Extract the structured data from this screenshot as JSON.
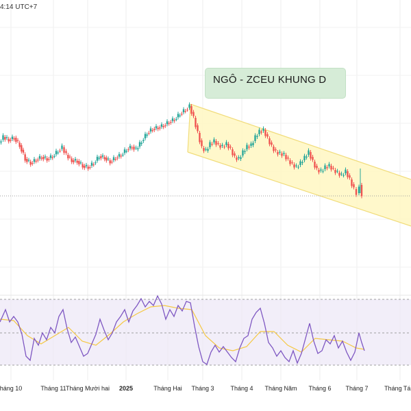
{
  "header": {
    "timestamp": "4:14 UTC+7"
  },
  "annotation": {
    "text": "NGÔ - ZCEU KHUNG D"
  },
  "colors": {
    "up": "#26a69a",
    "down": "#ef5350",
    "channel_fill": "#fff7c2",
    "channel_border": "#f1dc7a",
    "rsi_line": "#7e57c2",
    "rsi_ma": "#f5c842",
    "rsi_band": "#ede7f6",
    "price_line": "#9e9e9e"
  },
  "chart_data": [
    {
      "type": "candlestick",
      "title": "",
      "channel_type": "descending",
      "price_line": true,
      "grid": true,
      "x_ticks": [
        "háng 10",
        "Tháng 11",
        "Tháng Mười hai",
        "2025",
        "Tháng Hai",
        "Tháng 3",
        "Tháng 4",
        "Tháng Năm",
        "Tháng 6",
        "Tháng 7",
        "Tháng Tám"
      ],
      "close_series": [
        {
          "x": 0,
          "y": 208
        },
        {
          "x": 6,
          "y": 200
        },
        {
          "x": 14,
          "y": 204
        },
        {
          "x": 22,
          "y": 201
        },
        {
          "x": 30,
          "y": 212
        },
        {
          "x": 38,
          "y": 232
        },
        {
          "x": 46,
          "y": 238
        },
        {
          "x": 54,
          "y": 233
        },
        {
          "x": 62,
          "y": 229
        },
        {
          "x": 70,
          "y": 232
        },
        {
          "x": 78,
          "y": 228
        },
        {
          "x": 86,
          "y": 220
        },
        {
          "x": 92,
          "y": 215
        },
        {
          "x": 98,
          "y": 226
        },
        {
          "x": 106,
          "y": 234
        },
        {
          "x": 114,
          "y": 235
        },
        {
          "x": 122,
          "y": 242
        },
        {
          "x": 130,
          "y": 244
        },
        {
          "x": 138,
          "y": 238
        },
        {
          "x": 146,
          "y": 228
        },
        {
          "x": 154,
          "y": 230
        },
        {
          "x": 162,
          "y": 236
        },
        {
          "x": 170,
          "y": 230
        },
        {
          "x": 178,
          "y": 226
        },
        {
          "x": 186,
          "y": 218
        },
        {
          "x": 194,
          "y": 214
        },
        {
          "x": 200,
          "y": 218
        },
        {
          "x": 208,
          "y": 206
        },
        {
          "x": 216,
          "y": 194
        },
        {
          "x": 224,
          "y": 188
        },
        {
          "x": 232,
          "y": 186
        },
        {
          "x": 240,
          "y": 183
        },
        {
          "x": 248,
          "y": 178
        },
        {
          "x": 256,
          "y": 174
        },
        {
          "x": 264,
          "y": 166
        },
        {
          "x": 272,
          "y": 160
        },
        {
          "x": 278,
          "y": 155
        },
        {
          "x": 284,
          "y": 172
        },
        {
          "x": 290,
          "y": 194
        },
        {
          "x": 296,
          "y": 216
        },
        {
          "x": 302,
          "y": 220
        },
        {
          "x": 308,
          "y": 210
        },
        {
          "x": 314,
          "y": 206
        },
        {
          "x": 320,
          "y": 212
        },
        {
          "x": 326,
          "y": 214
        },
        {
          "x": 332,
          "y": 210
        },
        {
          "x": 338,
          "y": 218
        },
        {
          "x": 344,
          "y": 230
        },
        {
          "x": 350,
          "y": 232
        },
        {
          "x": 356,
          "y": 222
        },
        {
          "x": 362,
          "y": 214
        },
        {
          "x": 368,
          "y": 212
        },
        {
          "x": 374,
          "y": 200
        },
        {
          "x": 380,
          "y": 192
        },
        {
          "x": 386,
          "y": 190
        },
        {
          "x": 392,
          "y": 202
        },
        {
          "x": 398,
          "y": 214
        },
        {
          "x": 404,
          "y": 222
        },
        {
          "x": 410,
          "y": 224
        },
        {
          "x": 416,
          "y": 226
        },
        {
          "x": 422,
          "y": 234
        },
        {
          "x": 428,
          "y": 240
        },
        {
          "x": 434,
          "y": 244
        },
        {
          "x": 440,
          "y": 238
        },
        {
          "x": 446,
          "y": 230
        },
        {
          "x": 452,
          "y": 222
        },
        {
          "x": 458,
          "y": 236
        },
        {
          "x": 464,
          "y": 248
        },
        {
          "x": 470,
          "y": 250
        },
        {
          "x": 476,
          "y": 244
        },
        {
          "x": 482,
          "y": 242
        },
        {
          "x": 488,
          "y": 248
        },
        {
          "x": 494,
          "y": 252
        },
        {
          "x": 500,
          "y": 256
        },
        {
          "x": 506,
          "y": 250
        },
        {
          "x": 512,
          "y": 262
        },
        {
          "x": 518,
          "y": 276
        },
        {
          "x": 522,
          "y": 282
        },
        {
          "x": 526,
          "y": 270
        },
        {
          "x": 530,
          "y": 284
        }
      ],
      "rsi_series": [
        {
          "x": 0,
          "y": 470
        },
        {
          "x": 8,
          "y": 452
        },
        {
          "x": 14,
          "y": 470
        },
        {
          "x": 20,
          "y": 462
        },
        {
          "x": 26,
          "y": 470
        },
        {
          "x": 32,
          "y": 488
        },
        {
          "x": 38,
          "y": 520
        },
        {
          "x": 44,
          "y": 526
        },
        {
          "x": 50,
          "y": 494
        },
        {
          "x": 56,
          "y": 504
        },
        {
          "x": 62,
          "y": 486
        },
        {
          "x": 68,
          "y": 496
        },
        {
          "x": 74,
          "y": 478
        },
        {
          "x": 80,
          "y": 486
        },
        {
          "x": 86,
          "y": 462
        },
        {
          "x": 92,
          "y": 452
        },
        {
          "x": 98,
          "y": 480
        },
        {
          "x": 104,
          "y": 500
        },
        {
          "x": 110,
          "y": 492
        },
        {
          "x": 116,
          "y": 506
        },
        {
          "x": 122,
          "y": 520
        },
        {
          "x": 128,
          "y": 516
        },
        {
          "x": 134,
          "y": 502
        },
        {
          "x": 140,
          "y": 488
        },
        {
          "x": 146,
          "y": 466
        },
        {
          "x": 152,
          "y": 482
        },
        {
          "x": 158,
          "y": 496
        },
        {
          "x": 164,
          "y": 486
        },
        {
          "x": 170,
          "y": 470
        },
        {
          "x": 176,
          "y": 462
        },
        {
          "x": 182,
          "y": 452
        },
        {
          "x": 188,
          "y": 470
        },
        {
          "x": 194,
          "y": 454
        },
        {
          "x": 200,
          "y": 446
        },
        {
          "x": 206,
          "y": 436
        },
        {
          "x": 212,
          "y": 448
        },
        {
          "x": 218,
          "y": 440
        },
        {
          "x": 224,
          "y": 446
        },
        {
          "x": 230,
          "y": 432
        },
        {
          "x": 236,
          "y": 444
        },
        {
          "x": 242,
          "y": 466
        },
        {
          "x": 248,
          "y": 452
        },
        {
          "x": 254,
          "y": 462
        },
        {
          "x": 260,
          "y": 446
        },
        {
          "x": 266,
          "y": 454
        },
        {
          "x": 272,
          "y": 440
        },
        {
          "x": 278,
          "y": 442
        },
        {
          "x": 284,
          "y": 476
        },
        {
          "x": 290,
          "y": 506
        },
        {
          "x": 296,
          "y": 528
        },
        {
          "x": 302,
          "y": 532
        },
        {
          "x": 308,
          "y": 514
        },
        {
          "x": 314,
          "y": 504
        },
        {
          "x": 320,
          "y": 514
        },
        {
          "x": 326,
          "y": 506
        },
        {
          "x": 332,
          "y": 514
        },
        {
          "x": 338,
          "y": 522
        },
        {
          "x": 344,
          "y": 528
        },
        {
          "x": 350,
          "y": 508
        },
        {
          "x": 356,
          "y": 494
        },
        {
          "x": 362,
          "y": 490
        },
        {
          "x": 368,
          "y": 466
        },
        {
          "x": 374,
          "y": 456
        },
        {
          "x": 380,
          "y": 450
        },
        {
          "x": 386,
          "y": 472
        },
        {
          "x": 392,
          "y": 500
        },
        {
          "x": 398,
          "y": 508
        },
        {
          "x": 404,
          "y": 520
        },
        {
          "x": 410,
          "y": 512
        },
        {
          "x": 416,
          "y": 522
        },
        {
          "x": 422,
          "y": 528
        },
        {
          "x": 428,
          "y": 512
        },
        {
          "x": 434,
          "y": 530
        },
        {
          "x": 440,
          "y": 516
        },
        {
          "x": 446,
          "y": 494
        },
        {
          "x": 452,
          "y": 472
        },
        {
          "x": 458,
          "y": 498
        },
        {
          "x": 464,
          "y": 516
        },
        {
          "x": 470,
          "y": 512
        },
        {
          "x": 476,
          "y": 496
        },
        {
          "x": 482,
          "y": 502
        },
        {
          "x": 488,
          "y": 490
        },
        {
          "x": 494,
          "y": 508
        },
        {
          "x": 500,
          "y": 498
        },
        {
          "x": 506,
          "y": 514
        },
        {
          "x": 512,
          "y": 526
        },
        {
          "x": 518,
          "y": 514
        },
        {
          "x": 524,
          "y": 486
        },
        {
          "x": 528,
          "y": 500
        },
        {
          "x": 532,
          "y": 512
        }
      ],
      "rsi_ma_series": [
        {
          "x": 0,
          "y": 466
        },
        {
          "x": 20,
          "y": 468
        },
        {
          "x": 40,
          "y": 490
        },
        {
          "x": 60,
          "y": 502
        },
        {
          "x": 80,
          "y": 490
        },
        {
          "x": 100,
          "y": 478
        },
        {
          "x": 120,
          "y": 498
        },
        {
          "x": 140,
          "y": 504
        },
        {
          "x": 160,
          "y": 488
        },
        {
          "x": 180,
          "y": 470
        },
        {
          "x": 200,
          "y": 458
        },
        {
          "x": 220,
          "y": 448
        },
        {
          "x": 240,
          "y": 446
        },
        {
          "x": 260,
          "y": 450
        },
        {
          "x": 280,
          "y": 452
        },
        {
          "x": 300,
          "y": 490
        },
        {
          "x": 320,
          "y": 508
        },
        {
          "x": 340,
          "y": 512
        },
        {
          "x": 360,
          "y": 506
        },
        {
          "x": 380,
          "y": 484
        },
        {
          "x": 400,
          "y": 484
        },
        {
          "x": 420,
          "y": 504
        },
        {
          "x": 440,
          "y": 514
        },
        {
          "x": 460,
          "y": 494
        },
        {
          "x": 480,
          "y": 496
        },
        {
          "x": 500,
          "y": 498
        },
        {
          "x": 520,
          "y": 508
        },
        {
          "x": 532,
          "y": 510
        }
      ]
    }
  ]
}
